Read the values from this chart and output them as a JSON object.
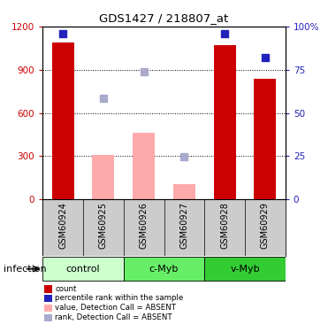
{
  "title": "GDS1427 / 218807_at",
  "samples": [
    "GSM60924",
    "GSM60925",
    "GSM60926",
    "GSM60927",
    "GSM60928",
    "GSM60929"
  ],
  "red_bars": [
    1090,
    0,
    0,
    0,
    1070,
    840
  ],
  "pink_bars": [
    0,
    310,
    460,
    105,
    0,
    0
  ],
  "blue_squares_pct": [
    96,
    null,
    null,
    null,
    96,
    82
  ],
  "light_blue_squares_val": [
    null,
    700,
    885,
    295,
    null,
    null
  ],
  "ylim_left": [
    0,
    1200
  ],
  "ylim_right": [
    0,
    100
  ],
  "yticks_left": [
    0,
    300,
    600,
    900,
    1200
  ],
  "yticks_right": [
    0,
    25,
    50,
    75,
    100
  ],
  "yticklabels_right": [
    "0",
    "25",
    "50",
    "75",
    "100%"
  ],
  "groups": [
    {
      "label": "control",
      "start": 0,
      "end": 2,
      "color": "#ccffcc"
    },
    {
      "label": "c-Myb",
      "start": 2,
      "end": 4,
      "color": "#66ee66"
    },
    {
      "label": "v-Myb",
      "start": 4,
      "end": 6,
      "color": "#33cc33"
    }
  ],
  "group_label": "infection",
  "red_color": "#cc0000",
  "pink_color": "#ffaaaa",
  "blue_color": "#2222bb",
  "light_blue_color": "#aaaacc",
  "left_tick_color": "#cc0000",
  "right_tick_color": "#2222bb",
  "bar_width": 0.55,
  "square_size": 40,
  "background_color": "#ffffff",
  "label_bg_color": "#cccccc",
  "legend_items": [
    {
      "color": "#cc0000",
      "label": "count",
      "type": "square"
    },
    {
      "color": "#2222bb",
      "label": "percentile rank within the sample",
      "type": "square"
    },
    {
      "color": "#ffaaaa",
      "label": "value, Detection Call = ABSENT",
      "type": "square"
    },
    {
      "color": "#aaaacc",
      "label": "rank, Detection Call = ABSENT",
      "type": "square"
    }
  ]
}
